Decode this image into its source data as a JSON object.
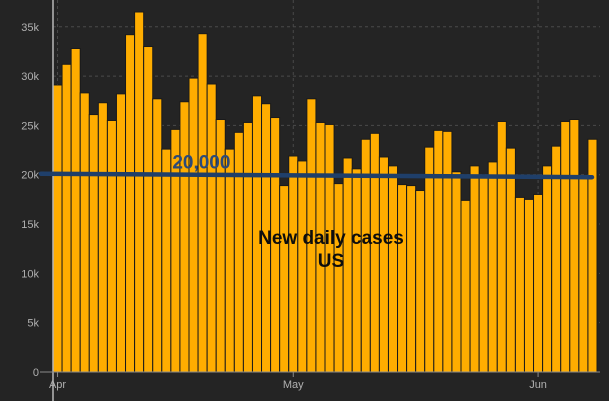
{
  "chart_data": {
    "type": "bar",
    "title": "New daily cases",
    "subtitle": "US",
    "xlabel": "",
    "ylabel": "",
    "ylim": [
      0,
      36500
    ],
    "y_ticks": [
      0,
      5000,
      10000,
      15000,
      20000,
      25000,
      30000,
      35000
    ],
    "y_tick_labels": [
      "0",
      "5k",
      "10k",
      "15k",
      "20k",
      "25k",
      "30k",
      "35k"
    ],
    "x_tick_labels": [
      "Apr",
      "May",
      "Jun"
    ],
    "x_tick_bar_index": [
      0,
      26,
      53
    ],
    "grid": true,
    "bar_color": "#ffad00",
    "line_color": "#1f3f6a",
    "reference_label": "20,000",
    "reference_line_bar_index": 12,
    "values": [
      29100,
      31200,
      32800,
      28300,
      26100,
      27300,
      25500,
      28200,
      34200,
      36500,
      33000,
      27700,
      22600,
      24600,
      27400,
      29800,
      34300,
      29200,
      25600,
      22600,
      24300,
      25300,
      28000,
      27200,
      25800,
      18900,
      21900,
      21400,
      27700,
      25300,
      25100,
      19100,
      21700,
      20600,
      23600,
      24200,
      21800,
      20900,
      19000,
      18900,
      18400,
      22800,
      24500,
      24400,
      20300,
      17400,
      20900,
      19800,
      21300,
      25400,
      22700,
      17700,
      17500,
      18000,
      20900,
      22900,
      25400,
      25600,
      19800,
      23600
    ],
    "trend": [
      20100,
      19750
    ]
  }
}
